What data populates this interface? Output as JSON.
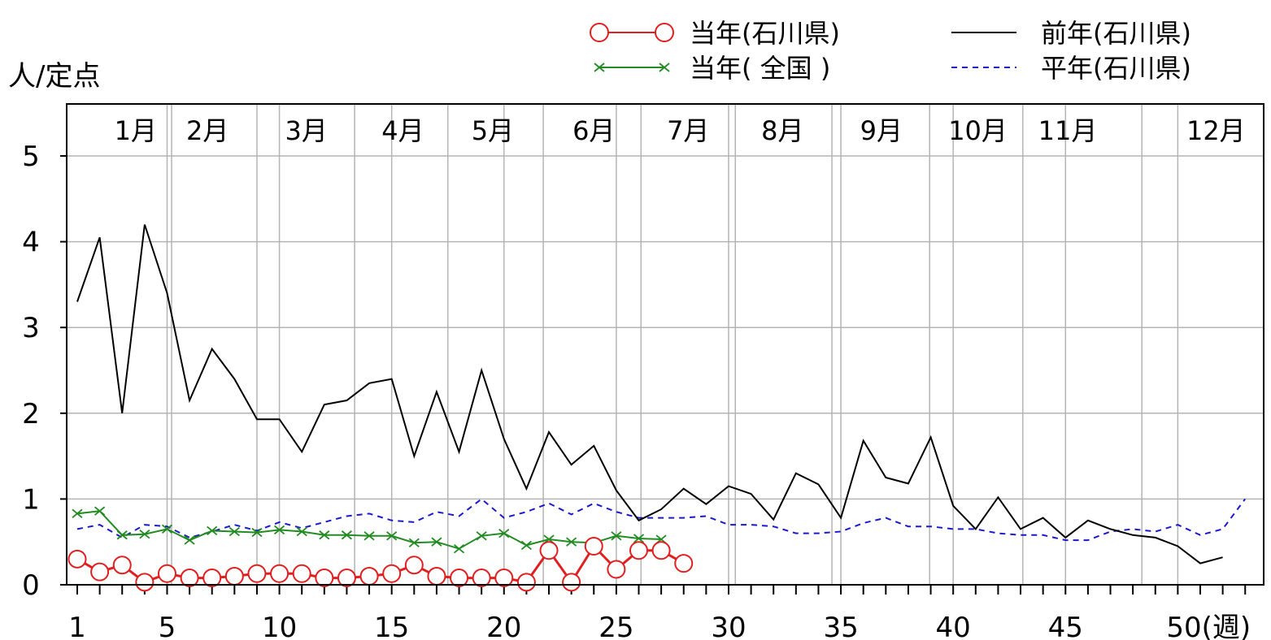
{
  "chart_data": {
    "type": "line",
    "ylabel": "人/定点",
    "xlabel_suffix": "(週)",
    "ylim": [
      0,
      5
    ],
    "xlim": [
      1,
      53
    ],
    "y_ticks": [
      "0",
      "1",
      "2",
      "3",
      "4",
      "5"
    ],
    "x_ticks": [
      {
        "week": 1,
        "label": "1"
      },
      {
        "week": 5,
        "label": "5"
      },
      {
        "week": 10,
        "label": "10"
      },
      {
        "week": 15,
        "label": "15"
      },
      {
        "week": 20,
        "label": "20"
      },
      {
        "week": 25,
        "label": "25"
      },
      {
        "week": 30,
        "label": "30"
      },
      {
        "week": 35,
        "label": "35"
      },
      {
        "week": 40,
        "label": "40"
      },
      {
        "week": 45,
        "label": "45"
      },
      {
        "week": 50,
        "label": "50(週)"
      }
    ],
    "month_labels": [
      {
        "week": 3.6,
        "label": "1月"
      },
      {
        "week": 6.8,
        "label": "2月"
      },
      {
        "week": 11.2,
        "label": "3月"
      },
      {
        "week": 15.5,
        "label": "4月"
      },
      {
        "week": 19.5,
        "label": "5月"
      },
      {
        "week": 24,
        "label": "6月"
      },
      {
        "week": 28.2,
        "label": "7月"
      },
      {
        "week": 32.4,
        "label": "8月"
      },
      {
        "week": 36.8,
        "label": "9月"
      },
      {
        "week": 41.1,
        "label": "10月"
      },
      {
        "week": 45.1,
        "label": "11月"
      },
      {
        "week": 51.7,
        "label": "12月"
      }
    ],
    "grid": true,
    "legend_position": "top",
    "series": [
      {
        "name": "当年(石川県)",
        "color": "#e02020",
        "marker": "circle",
        "x": [
          1,
          2,
          3,
          4,
          5,
          6,
          7,
          8,
          9,
          10,
          11,
          12,
          13,
          14,
          15,
          16,
          17,
          18,
          19,
          20,
          21,
          22,
          23,
          24,
          25,
          26,
          27,
          28
        ],
        "values": [
          0.3,
          0.15,
          0.23,
          0.03,
          0.13,
          0.08,
          0.08,
          0.1,
          0.13,
          0.13,
          0.13,
          0.08,
          0.08,
          0.1,
          0.13,
          0.23,
          0.1,
          0.08,
          0.08,
          0.08,
          0.03,
          0.4,
          0.03,
          0.45,
          0.18,
          0.4,
          0.4,
          0.25
        ]
      },
      {
        "name": "当年( 全国 )",
        "color": "#228b22",
        "marker": "x",
        "x": [
          1,
          2,
          3,
          4,
          5,
          6,
          7,
          8,
          9,
          10,
          11,
          12,
          13,
          14,
          15,
          16,
          17,
          18,
          19,
          20,
          21,
          22,
          23,
          24,
          25,
          26,
          27
        ],
        "values": [
          0.83,
          0.86,
          0.58,
          0.59,
          0.65,
          0.52,
          0.63,
          0.62,
          0.61,
          0.64,
          0.62,
          0.58,
          0.58,
          0.57,
          0.57,
          0.49,
          0.5,
          0.42,
          0.57,
          0.6,
          0.46,
          0.53,
          0.5,
          0.49,
          0.57,
          0.54,
          0.53
        ]
      },
      {
        "name": "前年(石川県)",
        "color": "#000000",
        "marker": "none",
        "x": [
          1,
          2,
          3,
          4,
          5,
          6,
          7,
          8,
          9,
          10,
          11,
          12,
          13,
          14,
          15,
          16,
          17,
          18,
          19,
          20,
          21,
          22,
          23,
          24,
          25,
          26,
          27,
          28,
          29,
          30,
          31,
          32,
          33,
          34,
          35,
          36,
          37,
          38,
          39,
          40,
          41,
          42,
          43,
          44,
          45,
          46,
          47,
          48,
          49,
          50,
          51,
          52
        ],
        "values": [
          3.3,
          4.05,
          2.0,
          4.2,
          3.4,
          2.15,
          2.75,
          2.4,
          1.93,
          1.93,
          1.55,
          2.1,
          2.15,
          2.35,
          2.4,
          1.5,
          2.25,
          1.55,
          2.5,
          1.7,
          1.12,
          1.78,
          1.4,
          1.62,
          1.1,
          0.75,
          0.88,
          1.12,
          0.94,
          1.15,
          1.06,
          0.76,
          1.3,
          1.17,
          0.78,
          1.68,
          1.25,
          1.18,
          1.72,
          0.92,
          0.65,
          1.02,
          0.65,
          0.78,
          0.55,
          0.75,
          0.65,
          0.58,
          0.55,
          0.45,
          0.25,
          0.32
        ]
      },
      {
        "name": "平年(石川県)",
        "color": "#1a1acc",
        "marker": "none",
        "dashed": true,
        "x": [
          1,
          2,
          3,
          4,
          5,
          6,
          7,
          8,
          9,
          10,
          11,
          12,
          13,
          14,
          15,
          16,
          17,
          18,
          19,
          20,
          21,
          22,
          23,
          24,
          25,
          26,
          27,
          28,
          29,
          30,
          31,
          32,
          33,
          34,
          35,
          36,
          37,
          38,
          39,
          40,
          41,
          42,
          43,
          44,
          45,
          46,
          47,
          48,
          49,
          50,
          51,
          52,
          53
        ],
        "values": [
          0.65,
          0.7,
          0.55,
          0.7,
          0.68,
          0.55,
          0.62,
          0.7,
          0.63,
          0.73,
          0.66,
          0.73,
          0.8,
          0.83,
          0.75,
          0.73,
          0.85,
          0.8,
          1.0,
          0.78,
          0.85,
          0.95,
          0.82,
          0.95,
          0.85,
          0.78,
          0.78,
          0.78,
          0.8,
          0.7,
          0.7,
          0.68,
          0.6,
          0.6,
          0.62,
          0.72,
          0.78,
          0.68,
          0.68,
          0.65,
          0.65,
          0.6,
          0.58,
          0.58,
          0.52,
          0.52,
          0.62,
          0.65,
          0.62,
          0.7,
          0.58,
          0.65,
          1.0
        ]
      }
    ]
  }
}
